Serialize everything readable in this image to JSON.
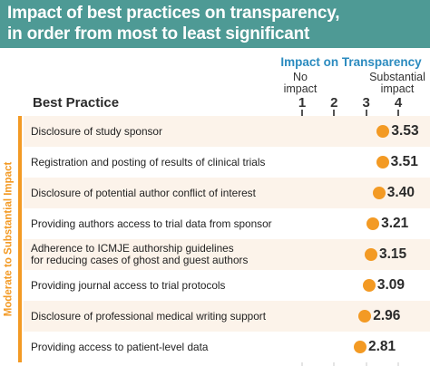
{
  "header": {
    "title_line1": "Impact of best practices on transparency,",
    "title_line2": "in order from most to least significant",
    "background_color": "#4e9a95"
  },
  "chart_data": {
    "type": "scatter",
    "scale_title": "Impact on Transparency",
    "scale_low_label": [
      "No",
      "impact"
    ],
    "scale_high_label": [
      "Substantial",
      "impact"
    ],
    "ticks": [
      1,
      2,
      3,
      4
    ],
    "xlim": [
      1,
      4
    ],
    "column_header": "Best Practice",
    "group_label": "Moderate to Substantial Impact",
    "accent_color": "#f39a24",
    "scale_title_color": "#2b8bbf",
    "row_shade_color": "#fcf3ea",
    "items": [
      {
        "label": [
          "Disclosure of study sponsor"
        ],
        "value": 3.53
      },
      {
        "label": [
          "Registration and posting of results of clinical trials"
        ],
        "value": 3.51
      },
      {
        "label": [
          "Disclosure of potential author conflict of interest"
        ],
        "value": 3.4
      },
      {
        "label": [
          "Providing authors access to trial data from sponsor"
        ],
        "value": 3.21
      },
      {
        "label": [
          "Adherence to ICMJE authorship guidelines",
          "for reducing cases of ghost and guest authors"
        ],
        "value": 3.15
      },
      {
        "label": [
          "Providing journal access to trial protocols"
        ],
        "value": 3.09
      },
      {
        "label": [
          "Disclosure of professional medical writing support"
        ],
        "value": 2.96
      },
      {
        "label": [
          "Providing access to patient-level data"
        ],
        "value": 2.81
      }
    ]
  }
}
